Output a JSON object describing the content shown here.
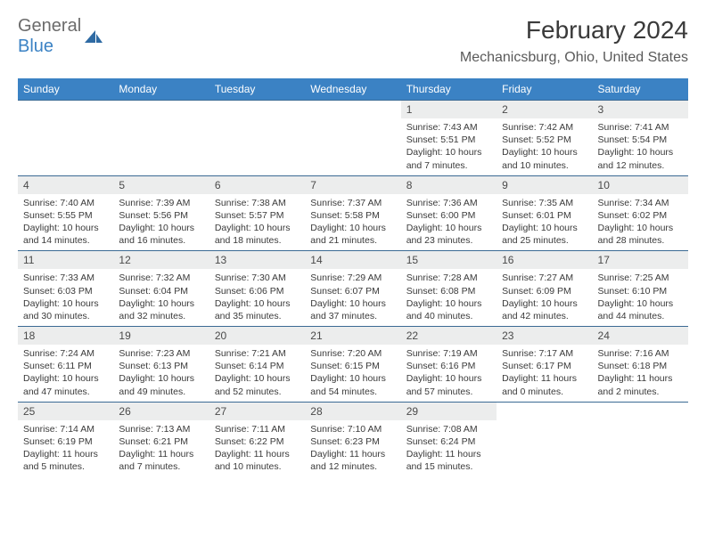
{
  "brand": {
    "general": "General",
    "blue": "Blue"
  },
  "title": "February 2024",
  "location": "Mechanicsburg, Ohio, United States",
  "colors": {
    "header_bg": "#3b82c4",
    "header_text": "#ffffff",
    "daynum_bg": "#eceded",
    "row_border": "#3b6a94",
    "body_text": "#3a3a3a",
    "logo_gray": "#6b6b6b",
    "logo_blue": "#3b82c4"
  },
  "weekdays": [
    "Sunday",
    "Monday",
    "Tuesday",
    "Wednesday",
    "Thursday",
    "Friday",
    "Saturday"
  ],
  "weeks": [
    [
      {
        "blank": true
      },
      {
        "blank": true
      },
      {
        "blank": true
      },
      {
        "blank": true
      },
      {
        "n": "1",
        "sr": "Sunrise: 7:43 AM",
        "ss": "Sunset: 5:51 PM",
        "dl": "Daylight: 10 hours and 7 minutes."
      },
      {
        "n": "2",
        "sr": "Sunrise: 7:42 AM",
        "ss": "Sunset: 5:52 PM",
        "dl": "Daylight: 10 hours and 10 minutes."
      },
      {
        "n": "3",
        "sr": "Sunrise: 7:41 AM",
        "ss": "Sunset: 5:54 PM",
        "dl": "Daylight: 10 hours and 12 minutes."
      }
    ],
    [
      {
        "n": "4",
        "sr": "Sunrise: 7:40 AM",
        "ss": "Sunset: 5:55 PM",
        "dl": "Daylight: 10 hours and 14 minutes."
      },
      {
        "n": "5",
        "sr": "Sunrise: 7:39 AM",
        "ss": "Sunset: 5:56 PM",
        "dl": "Daylight: 10 hours and 16 minutes."
      },
      {
        "n": "6",
        "sr": "Sunrise: 7:38 AM",
        "ss": "Sunset: 5:57 PM",
        "dl": "Daylight: 10 hours and 18 minutes."
      },
      {
        "n": "7",
        "sr": "Sunrise: 7:37 AM",
        "ss": "Sunset: 5:58 PM",
        "dl": "Daylight: 10 hours and 21 minutes."
      },
      {
        "n": "8",
        "sr": "Sunrise: 7:36 AM",
        "ss": "Sunset: 6:00 PM",
        "dl": "Daylight: 10 hours and 23 minutes."
      },
      {
        "n": "9",
        "sr": "Sunrise: 7:35 AM",
        "ss": "Sunset: 6:01 PM",
        "dl": "Daylight: 10 hours and 25 minutes."
      },
      {
        "n": "10",
        "sr": "Sunrise: 7:34 AM",
        "ss": "Sunset: 6:02 PM",
        "dl": "Daylight: 10 hours and 28 minutes."
      }
    ],
    [
      {
        "n": "11",
        "sr": "Sunrise: 7:33 AM",
        "ss": "Sunset: 6:03 PM",
        "dl": "Daylight: 10 hours and 30 minutes."
      },
      {
        "n": "12",
        "sr": "Sunrise: 7:32 AM",
        "ss": "Sunset: 6:04 PM",
        "dl": "Daylight: 10 hours and 32 minutes."
      },
      {
        "n": "13",
        "sr": "Sunrise: 7:30 AM",
        "ss": "Sunset: 6:06 PM",
        "dl": "Daylight: 10 hours and 35 minutes."
      },
      {
        "n": "14",
        "sr": "Sunrise: 7:29 AM",
        "ss": "Sunset: 6:07 PM",
        "dl": "Daylight: 10 hours and 37 minutes."
      },
      {
        "n": "15",
        "sr": "Sunrise: 7:28 AM",
        "ss": "Sunset: 6:08 PM",
        "dl": "Daylight: 10 hours and 40 minutes."
      },
      {
        "n": "16",
        "sr": "Sunrise: 7:27 AM",
        "ss": "Sunset: 6:09 PM",
        "dl": "Daylight: 10 hours and 42 minutes."
      },
      {
        "n": "17",
        "sr": "Sunrise: 7:25 AM",
        "ss": "Sunset: 6:10 PM",
        "dl": "Daylight: 10 hours and 44 minutes."
      }
    ],
    [
      {
        "n": "18",
        "sr": "Sunrise: 7:24 AM",
        "ss": "Sunset: 6:11 PM",
        "dl": "Daylight: 10 hours and 47 minutes."
      },
      {
        "n": "19",
        "sr": "Sunrise: 7:23 AM",
        "ss": "Sunset: 6:13 PM",
        "dl": "Daylight: 10 hours and 49 minutes."
      },
      {
        "n": "20",
        "sr": "Sunrise: 7:21 AM",
        "ss": "Sunset: 6:14 PM",
        "dl": "Daylight: 10 hours and 52 minutes."
      },
      {
        "n": "21",
        "sr": "Sunrise: 7:20 AM",
        "ss": "Sunset: 6:15 PM",
        "dl": "Daylight: 10 hours and 54 minutes."
      },
      {
        "n": "22",
        "sr": "Sunrise: 7:19 AM",
        "ss": "Sunset: 6:16 PM",
        "dl": "Daylight: 10 hours and 57 minutes."
      },
      {
        "n": "23",
        "sr": "Sunrise: 7:17 AM",
        "ss": "Sunset: 6:17 PM",
        "dl": "Daylight: 11 hours and 0 minutes."
      },
      {
        "n": "24",
        "sr": "Sunrise: 7:16 AM",
        "ss": "Sunset: 6:18 PM",
        "dl": "Daylight: 11 hours and 2 minutes."
      }
    ],
    [
      {
        "n": "25",
        "sr": "Sunrise: 7:14 AM",
        "ss": "Sunset: 6:19 PM",
        "dl": "Daylight: 11 hours and 5 minutes."
      },
      {
        "n": "26",
        "sr": "Sunrise: 7:13 AM",
        "ss": "Sunset: 6:21 PM",
        "dl": "Daylight: 11 hours and 7 minutes."
      },
      {
        "n": "27",
        "sr": "Sunrise: 7:11 AM",
        "ss": "Sunset: 6:22 PM",
        "dl": "Daylight: 11 hours and 10 minutes."
      },
      {
        "n": "28",
        "sr": "Sunrise: 7:10 AM",
        "ss": "Sunset: 6:23 PM",
        "dl": "Daylight: 11 hours and 12 minutes."
      },
      {
        "n": "29",
        "sr": "Sunrise: 7:08 AM",
        "ss": "Sunset: 6:24 PM",
        "dl": "Daylight: 11 hours and 15 minutes."
      },
      {
        "blank": true
      },
      {
        "blank": true
      }
    ]
  ]
}
